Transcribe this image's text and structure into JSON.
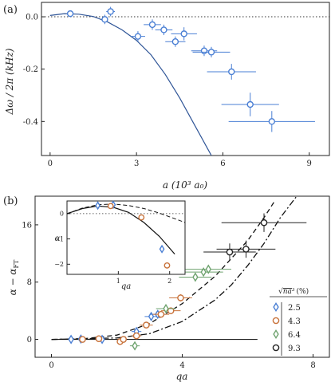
{
  "chart_data": [
    {
      "type": "scatter",
      "panel_label": "(a)",
      "xlabel": "a (10³ a₀)",
      "ylabel": "Δω / 2π (kHz)",
      "xlim": [
        -0.3,
        9.7
      ],
      "ylim": [
        -0.53,
        0.055
      ],
      "x_ticks": [
        0,
        3,
        6,
        9
      ],
      "y_ticks": [
        0.0,
        -0.2,
        -0.4
      ],
      "y_tick_labels": [
        "0.0",
        "-0.2",
        "-0.4"
      ],
      "reference_line": {
        "y": 0,
        "style": "dotted"
      },
      "theory_curve": {
        "color": "#2f5597",
        "x": [
          0,
          0.5,
          1,
          1.5,
          2,
          2.5,
          3,
          3.5,
          4,
          4.5,
          5,
          5.5,
          5.6
        ],
        "y": [
          0.005,
          0.012,
          0.01,
          0.001,
          -0.02,
          -0.05,
          -0.09,
          -0.145,
          -0.22,
          -0.31,
          -0.41,
          -0.51,
          -0.53
        ]
      },
      "series": [
        {
          "marker": "circle",
          "color": "#4a7fd4",
          "points": [
            {
              "x": 0.7,
              "y": 0.012,
              "xerr": 0.0,
              "yerr": 0.0
            },
            {
              "x": 1.9,
              "y": -0.01,
              "xerr": 0.1,
              "yerr": 0.018
            },
            {
              "x": 2.1,
              "y": 0.02,
              "xerr": 0.15,
              "yerr": 0.018
            },
            {
              "x": 3.05,
              "y": -0.075,
              "xerr": 0.25,
              "yerr": 0.02
            },
            {
              "x": 3.55,
              "y": -0.03,
              "xerr": 0.3,
              "yerr": 0.02
            },
            {
              "x": 3.95,
              "y": -0.05,
              "xerr": 0.3,
              "yerr": 0.02
            },
            {
              "x": 4.35,
              "y": -0.095,
              "xerr": 0.35,
              "yerr": 0.02
            },
            {
              "x": 4.65,
              "y": -0.065,
              "xerr": 0.45,
              "yerr": 0.025
            },
            {
              "x": 5.35,
              "y": -0.13,
              "xerr": 0.45,
              "yerr": 0.02
            },
            {
              "x": 5.6,
              "y": -0.135,
              "xerr": 0.65,
              "yerr": 0.02
            },
            {
              "x": 6.3,
              "y": -0.21,
              "xerr": 0.85,
              "yerr": 0.03
            },
            {
              "x": 6.95,
              "y": -0.335,
              "xerr": 1.0,
              "yerr": 0.045
            },
            {
              "x": 7.7,
              "y": -0.4,
              "xerr": 1.5,
              "yerr": 0.04
            }
          ]
        }
      ]
    },
    {
      "type": "scatter",
      "panel_label": "(b)",
      "xlabel": "qa",
      "ylabel": "α − α_FT",
      "ylabel_main": "α − α",
      "ylabel_sub": "FT",
      "xlim": [
        -0.5,
        8.5
      ],
      "ylim": [
        -2.5,
        20
      ],
      "x_ticks": [
        0,
        4,
        8
      ],
      "y_ticks": [
        0,
        8,
        16
      ],
      "baseline": {
        "y": 0,
        "style": "solid"
      },
      "dashed_curve": {
        "x": [
          0,
          1,
          2,
          3,
          4,
          5,
          6,
          6.5,
          6.85
        ],
        "y": [
          0,
          0.1,
          0.6,
          2.2,
          5.0,
          8.8,
          13.8,
          17.0,
          19.5
        ]
      },
      "dashdot_curve": {
        "x": [
          0,
          2,
          3,
          4,
          5,
          5.5,
          6,
          6.5,
          7,
          7.5
        ],
        "y": [
          0,
          0.2,
          0.8,
          2.5,
          5.5,
          7.6,
          10.3,
          13.4,
          17.0,
          20.0
        ]
      },
      "legend": {
        "header_sqrt": "√",
        "header_radicand": "na³",
        "header_unit": "(%)",
        "entries": [
          {
            "label": "2.5",
            "marker": "diamond",
            "color": "#4a7fd4"
          },
          {
            "label": "4.3",
            "marker": "circle",
            "color": "#c8723a"
          },
          {
            "label": "6.4",
            "marker": "diamond",
            "color": "#6fa36f"
          },
          {
            "label": "9.3",
            "marker": "circle",
            "color": "#222222"
          }
        ]
      },
      "series": [
        {
          "name": "2.5",
          "marker": "diamond",
          "color": "#4a7fd4",
          "points": [
            {
              "x": 0.6,
              "y": 0.0,
              "xerr": 0.05,
              "yerr": 0.15
            },
            {
              "x": 0.9,
              "y": 0.05,
              "xerr": 0.05,
              "yerr": 0.15
            },
            {
              "x": 1.55,
              "y": 0.0,
              "xerr": 0.08,
              "yerr": 0.2
            },
            {
              "x": 2.6,
              "y": 1.1,
              "xerr": 0.15,
              "yerr": 0.3
            },
            {
              "x": 3.05,
              "y": 3.2,
              "xerr": 0.2,
              "yerr": 0.4
            },
            {
              "x": 3.25,
              "y": 3.5,
              "xerr": 0.25,
              "yerr": 0.4
            }
          ]
        },
        {
          "name": "4.3",
          "marker": "circle",
          "color": "#c8723a",
          "points": [
            {
              "x": 0.95,
              "y": 0.0,
              "xerr": 0.05,
              "yerr": 0.2
            },
            {
              "x": 1.45,
              "y": 0.1,
              "xerr": 0.08,
              "yerr": 0.2
            },
            {
              "x": 2.1,
              "y": -0.3,
              "xerr": 0.1,
              "yerr": 0.25
            },
            {
              "x": 2.2,
              "y": 0.0,
              "xerr": 0.1,
              "yerr": 0.25
            },
            {
              "x": 2.6,
              "y": 0.5,
              "xerr": 0.15,
              "yerr": 0.3
            },
            {
              "x": 2.9,
              "y": 2.0,
              "xerr": 0.2,
              "yerr": 0.35
            },
            {
              "x": 3.35,
              "y": 3.5,
              "xerr": 0.25,
              "yerr": 0.35
            },
            {
              "x": 3.65,
              "y": 4.0,
              "xerr": 0.3,
              "yerr": 0.4
            },
            {
              "x": 3.95,
              "y": 5.8,
              "xerr": 0.35,
              "yerr": 0.5
            }
          ]
        },
        {
          "name": "6.4",
          "marker": "diamond",
          "color": "#6fa36f",
          "points": [
            {
              "x": 2.55,
              "y": -0.9,
              "xerr": 0.15,
              "yerr": 0.3
            },
            {
              "x": 3.5,
              "y": 4.3,
              "xerr": 0.3,
              "yerr": 0.5
            },
            {
              "x": 4.4,
              "y": 8.7,
              "xerr": 0.5,
              "yerr": 0.6
            },
            {
              "x": 4.65,
              "y": 9.4,
              "xerr": 0.6,
              "yerr": 0.6
            },
            {
              "x": 4.8,
              "y": 9.8,
              "xerr": 0.7,
              "yerr": 0.6
            }
          ]
        },
        {
          "name": "9.3",
          "marker": "circle",
          "color": "#222222",
          "points": [
            {
              "x": 5.45,
              "y": 12.2,
              "xerr": 0.8,
              "yerr": 1.2
            },
            {
              "x": 5.95,
              "y": 12.6,
              "xerr": 0.9,
              "yerr": 1.2
            },
            {
              "x": 6.5,
              "y": 16.3,
              "xerr": 1.3,
              "yerr": 1.3
            }
          ]
        }
      ],
      "inset": {
        "xlabel": "qa",
        "ylabel": "α",
        "xlim": [
          0,
          2.3
        ],
        "ylim": [
          -2.4,
          0.5
        ],
        "x_ticks": [
          1,
          2
        ],
        "y_ticks": [
          0,
          -1,
          -2
        ],
        "y_tick_labels": [
          "0",
          "−1",
          "−2"
        ],
        "reference_line": {
          "y": 0,
          "style": "dotted"
        },
        "solid_curve": {
          "x": [
            0,
            0.3,
            0.6,
            0.9,
            1.2,
            1.5,
            1.8,
            2.1
          ],
          "y": [
            0,
            0.2,
            0.3,
            0.25,
            0.05,
            -0.35,
            -0.9,
            -1.6
          ]
        },
        "dashed_curve": {
          "x": [
            0,
            0.3,
            0.6,
            0.9,
            1.2,
            1.5,
            1.8,
            2.1,
            2.3
          ],
          "y": [
            0,
            0.22,
            0.35,
            0.38,
            0.32,
            0.2,
            0.02,
            -0.2,
            -0.35
          ]
        },
        "series": [
          {
            "name": "2.5",
            "marker": "diamond",
            "color": "#4a7fd4",
            "points": [
              {
                "x": 0.6,
                "y": 0.32
              },
              {
                "x": 0.9,
                "y": 0.35
              },
              {
                "x": 1.85,
                "y": -1.4
              }
            ]
          },
          {
            "name": "4.3",
            "marker": "circle",
            "color": "#c8723a",
            "points": [
              {
                "x": 0.85,
                "y": 0.3
              },
              {
                "x": 1.45,
                "y": -0.15
              },
              {
                "x": 1.95,
                "y": -2.05
              }
            ]
          }
        ]
      }
    }
  ]
}
